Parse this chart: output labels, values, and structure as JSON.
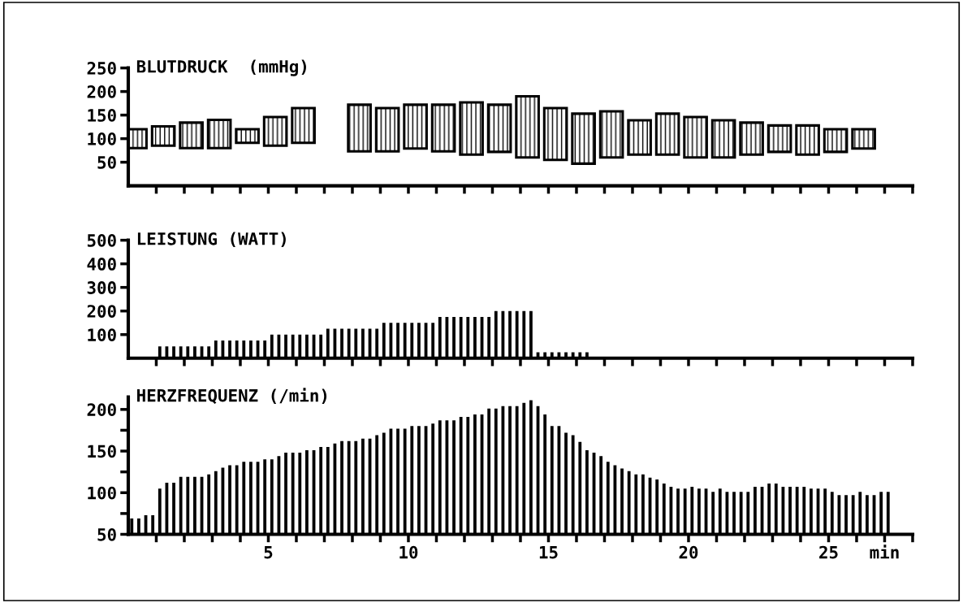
{
  "chart_data": [
    {
      "type": "bar",
      "title": "BLUTDRUCK  (mmHg)",
      "color": "#000000",
      "x": [
        0.25,
        1.25,
        2.25,
        3.25,
        4.25,
        5.25,
        6.25,
        8.25,
        9.25,
        10.25,
        11.25,
        12.25,
        13.25,
        14.25,
        15.25,
        16.25,
        17.25,
        18.25,
        19.25,
        20.25,
        21.25,
        22.25,
        23.25,
        24.25,
        25.25,
        26.25
      ],
      "base": [
        80,
        85,
        80,
        80,
        91,
        85,
        91,
        73,
        73,
        79,
        73,
        66,
        72,
        60,
        55,
        47,
        60,
        66,
        66,
        60,
        60,
        66,
        72,
        66,
        72,
        79
      ],
      "values": [
        40,
        41,
        54,
        60,
        29,
        61,
        74,
        99,
        92,
        93,
        99,
        111,
        100,
        130,
        110,
        106,
        98,
        73,
        87,
        86,
        79,
        68,
        56,
        62,
        48,
        41
      ],
      "xlim": [
        0,
        28
      ],
      "ylim": [
        0,
        250
      ],
      "yticks": [
        50,
        100,
        150,
        200,
        250
      ],
      "xticks": [
        {
          "value": 1,
          "label": null
        },
        {
          "value": 2,
          "label": null
        },
        {
          "value": 3,
          "label": null
        },
        {
          "value": 4,
          "label": null
        },
        {
          "value": 5,
          "label": null
        },
        {
          "value": 6,
          "label": null
        },
        {
          "value": 7,
          "label": null
        },
        {
          "value": 8,
          "label": null
        },
        {
          "value": 9,
          "label": null
        },
        {
          "value": 10,
          "label": null
        },
        {
          "value": 11,
          "label": null
        },
        {
          "value": 12,
          "label": null
        },
        {
          "value": 13,
          "label": null
        },
        {
          "value": 14,
          "label": null
        },
        {
          "value": 15,
          "label": null
        },
        {
          "value": 16,
          "label": null
        },
        {
          "value": 17,
          "label": null
        },
        {
          "value": 18,
          "label": null
        },
        {
          "value": 19,
          "label": null
        },
        {
          "value": 20,
          "label": null
        },
        {
          "value": 21,
          "label": null
        },
        {
          "value": 22,
          "label": null
        },
        {
          "value": 23,
          "label": null
        },
        {
          "value": 24,
          "label": null
        },
        {
          "value": 25,
          "label": null
        },
        {
          "value": 26,
          "label": null
        },
        {
          "value": 27,
          "label": null
        },
        {
          "value": 28,
          "label": null
        }
      ],
      "tick_labels": "y",
      "grid": false,
      "legend": false
    },
    {
      "type": "bar",
      "title": "LEISTUNG (WATT)",
      "color": "#000000",
      "x": [
        1.125,
        1.375,
        1.625,
        1.875,
        2.125,
        2.375,
        2.625,
        2.875,
        3.125,
        3.375,
        3.625,
        3.875,
        4.125,
        4.375,
        4.625,
        4.875,
        5.125,
        5.375,
        5.625,
        5.875,
        6.125,
        6.375,
        6.625,
        6.875,
        7.125,
        7.375,
        7.625,
        7.875,
        8.125,
        8.375,
        8.625,
        8.875,
        9.125,
        9.375,
        9.625,
        9.875,
        10.125,
        10.375,
        10.625,
        10.875,
        11.125,
        11.375,
        11.625,
        11.875,
        12.125,
        12.375,
        12.625,
        12.875,
        13.125,
        13.375,
        13.625,
        13.875,
        14.125,
        14.375,
        14.625,
        14.875,
        15.125,
        15.375,
        15.625,
        15.875,
        16.125,
        16.375
      ],
      "values": [
        50,
        50,
        50,
        50,
        50,
        50,
        50,
        50,
        75,
        75,
        75,
        75,
        75,
        75,
        75,
        75,
        100,
        100,
        100,
        100,
        100,
        100,
        100,
        100,
        125,
        125,
        125,
        125,
        125,
        125,
        125,
        125,
        150,
        150,
        150,
        150,
        150,
        150,
        150,
        150,
        175,
        175,
        175,
        175,
        175,
        175,
        175,
        175,
        200,
        200,
        200,
        200,
        200,
        200,
        25,
        25,
        25,
        25,
        25,
        25,
        25,
        25
      ],
      "xlim": [
        0,
        28
      ],
      "ylim": [
        0,
        500
      ],
      "yticks": [
        100,
        200,
        300,
        400,
        500
      ],
      "xticks": [
        {
          "value": 1,
          "label": null
        },
        {
          "value": 2,
          "label": null
        },
        {
          "value": 3,
          "label": null
        },
        {
          "value": 4,
          "label": null
        },
        {
          "value": 5,
          "label": null
        },
        {
          "value": 6,
          "label": null
        },
        {
          "value": 7,
          "label": null
        },
        {
          "value": 8,
          "label": null
        },
        {
          "value": 9,
          "label": null
        },
        {
          "value": 10,
          "label": null
        },
        {
          "value": 11,
          "label": null
        },
        {
          "value": 12,
          "label": null
        },
        {
          "value": 13,
          "label": null
        },
        {
          "value": 14,
          "label": null
        },
        {
          "value": 15,
          "label": null
        },
        {
          "value": 16,
          "label": null
        },
        {
          "value": 17,
          "label": null
        },
        {
          "value": 18,
          "label": null
        },
        {
          "value": 19,
          "label": null
        },
        {
          "value": 20,
          "label": null
        },
        {
          "value": 21,
          "label": null
        },
        {
          "value": 22,
          "label": null
        },
        {
          "value": 23,
          "label": null
        },
        {
          "value": 24,
          "label": null
        },
        {
          "value": 25,
          "label": null
        },
        {
          "value": 26,
          "label": null
        },
        {
          "value": 27,
          "label": null
        },
        {
          "value": 28,
          "label": null
        }
      ],
      "tick_labels": "y",
      "grid": false,
      "legend": false
    },
    {
      "type": "bar",
      "title": "HERZFREQUENZ (/min)",
      "color": "#000000",
      "x": [
        0.125,
        0.375,
        0.625,
        0.875,
        1.125,
        1.375,
        1.625,
        1.875,
        2.125,
        2.375,
        2.625,
        2.875,
        3.125,
        3.375,
        3.625,
        3.875,
        4.125,
        4.375,
        4.625,
        4.875,
        5.125,
        5.375,
        5.625,
        5.875,
        6.125,
        6.375,
        6.625,
        6.875,
        7.125,
        7.375,
        7.625,
        7.875,
        8.125,
        8.375,
        8.625,
        8.875,
        9.125,
        9.375,
        9.625,
        9.875,
        10.125,
        10.375,
        10.625,
        10.875,
        11.125,
        11.375,
        11.625,
        11.875,
        12.125,
        12.375,
        12.625,
        12.875,
        13.125,
        13.375,
        13.625,
        13.875,
        14.125,
        14.375,
        14.625,
        14.875,
        15.125,
        15.375,
        15.625,
        15.875,
        16.125,
        16.375,
        16.625,
        16.875,
        17.125,
        17.375,
        17.625,
        17.875,
        18.125,
        18.375,
        18.625,
        18.875,
        19.125,
        19.375,
        19.625,
        19.875,
        20.125,
        20.375,
        20.625,
        20.875,
        21.125,
        21.375,
        21.625,
        21.875,
        22.125,
        22.375,
        22.625,
        22.875,
        23.125,
        23.375,
        23.625,
        23.875,
        24.125,
        24.375,
        24.625,
        24.875,
        25.125,
        25.375,
        25.625,
        25.875,
        26.125,
        26.375,
        26.625,
        26.875,
        27.125
      ],
      "values": [
        69,
        69,
        73,
        73,
        105,
        112,
        112,
        119,
        119,
        119,
        119,
        122,
        126,
        130,
        133,
        133,
        137,
        137,
        137,
        140,
        140,
        144,
        148,
        148,
        148,
        151,
        151,
        155,
        155,
        159,
        162,
        162,
        162,
        165,
        165,
        169,
        172,
        177,
        177,
        177,
        180,
        180,
        180,
        183,
        187,
        187,
        187,
        191,
        191,
        194,
        194,
        201,
        201,
        204,
        204,
        204,
        208,
        211,
        204,
        194,
        180,
        180,
        172,
        169,
        161,
        151,
        148,
        144,
        137,
        133,
        129,
        126,
        122,
        122,
        118,
        116,
        111,
        107,
        105,
        105,
        107,
        105,
        105,
        101,
        105,
        101,
        101,
        101,
        101,
        107,
        107,
        111,
        111,
        107,
        107,
        107,
        107,
        105,
        105,
        105,
        101,
        97,
        97,
        97,
        101,
        97,
        97,
        101,
        101
      ],
      "xlim": [
        0,
        28
      ],
      "ylim": [
        50,
        215
      ],
      "yticks": [
        50,
        {
          "value": 75,
          "label": null
        },
        100,
        {
          "value": 125,
          "label": null
        },
        150,
        {
          "value": 175,
          "label": null
        },
        200
      ],
      "xticks": [
        {
          "value": 1,
          "label": null
        },
        {
          "value": 2,
          "label": null
        },
        {
          "value": 3,
          "label": null
        },
        {
          "value": 4,
          "label": null
        },
        5,
        {
          "value": 6,
          "label": null
        },
        {
          "value": 7,
          "label": null
        },
        {
          "value": 8,
          "label": null
        },
        {
          "value": 9,
          "label": null
        },
        10,
        {
          "value": 11,
          "label": null
        },
        {
          "value": 12,
          "label": null
        },
        {
          "value": 13,
          "label": null
        },
        {
          "value": 14,
          "label": null
        },
        15,
        {
          "value": 16,
          "label": null
        },
        {
          "value": 17,
          "label": null
        },
        {
          "value": 18,
          "label": null
        },
        {
          "value": 19,
          "label": null
        },
        20,
        {
          "value": 21,
          "label": null
        },
        {
          "value": 22,
          "label": null
        },
        {
          "value": 23,
          "label": null
        },
        {
          "value": 24,
          "label": null
        },
        25,
        {
          "value": 26,
          "label": null
        },
        {
          "value": 27,
          "label": "min"
        },
        {
          "value": 28,
          "label": null
        }
      ],
      "grid": false,
      "legend": false
    }
  ]
}
